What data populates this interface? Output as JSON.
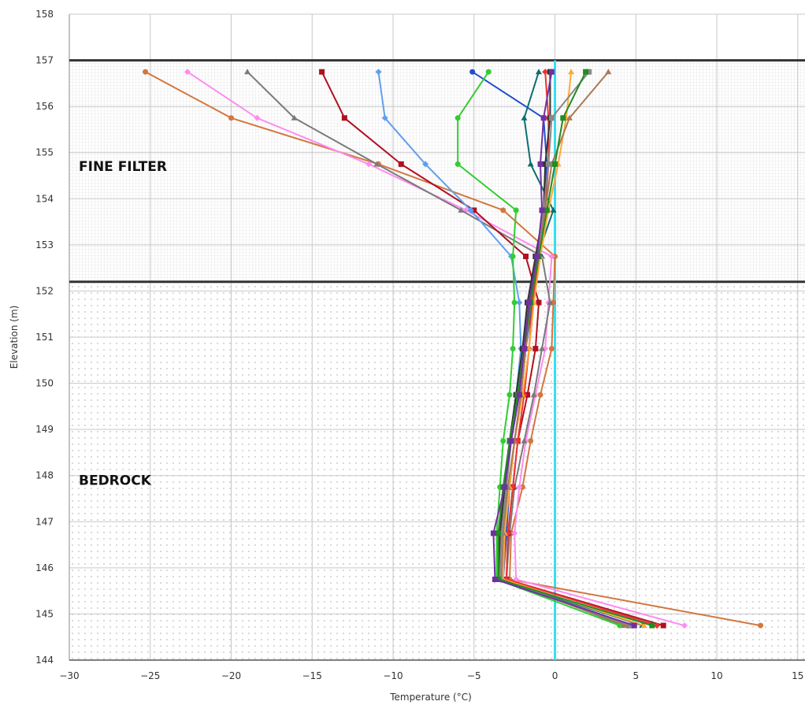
{
  "chart_data": {
    "type": "line",
    "title": "",
    "xlabel": "Temperature (°C)",
    "ylabel": "Elevation (m)",
    "xlim": [
      -30,
      15
    ],
    "ylim": [
      144,
      158
    ],
    "x_ticks": [
      "-30",
      "-25",
      "-20",
      "-15",
      "-10",
      "-5",
      "0",
      "5",
      "10",
      "15"
    ],
    "y_ticks": [
      "144",
      "145",
      "146",
      "147",
      "148",
      "149",
      "150",
      "151",
      "152",
      "153",
      "154",
      "155",
      "156",
      "157",
      "158"
    ],
    "grid": true,
    "zero_line_color": "#33e0f0",
    "zones": [
      {
        "label": "FINE FILTER",
        "from": 152.2,
        "to": 157.0,
        "pattern": "fine-grid"
      },
      {
        "label": "BEDROCK",
        "from": 144.0,
        "to": 152.2,
        "pattern": "dots"
      }
    ],
    "elevations": [
      156.75,
      155.75,
      154.75,
      153.75,
      152.75,
      151.75,
      150.75,
      149.75,
      148.75,
      147.75,
      146.75,
      145.75,
      144.75
    ],
    "series": [
      {
        "color": "#d2773f",
        "marker": "circle",
        "x": [
          -25.3,
          -20.0,
          -10.9,
          -3.2,
          0.0,
          -0.1,
          -0.2,
          -0.9,
          -1.5,
          -2.0,
          -2.7,
          -2.8,
          12.7
        ]
      },
      {
        "color": "#ff8cf0",
        "marker": "diamond",
        "x": [
          -22.7,
          -18.4,
          -11.5,
          -5.5,
          -0.2,
          -0.4,
          -0.6,
          -1.2,
          -1.8,
          -2.2,
          -2.5,
          -2.4,
          8.0
        ]
      },
      {
        "color": "#7a7a7a",
        "marker": "triangle",
        "x": [
          -19.0,
          -16.1,
          -11.0,
          -5.8,
          -0.8,
          -0.3,
          -0.8,
          -1.3,
          -1.9,
          -2.5,
          -2.8,
          -3.0,
          4.2
        ]
      },
      {
        "color": "#b01020",
        "marker": "square",
        "x": [
          -14.4,
          -13.0,
          -9.5,
          -5.0,
          -1.8,
          -1.0,
          -1.2,
          -1.7,
          -2.3,
          -2.6,
          -2.9,
          -3.0,
          6.7
        ]
      },
      {
        "color": "#5f9fef",
        "marker": "diamond",
        "x": [
          -10.9,
          -10.5,
          -8.0,
          -5.2,
          -2.7,
          -2.2,
          -2.1,
          -2.4,
          -2.7,
          -3.0,
          -3.2,
          -3.3,
          4.8
        ]
      },
      {
        "color": "#1f4fcf",
        "marker": "circle",
        "x": [
          -5.1,
          -0.7,
          -0.5,
          -0.7,
          -0.9,
          -1.4,
          -1.8,
          -2.1,
          -2.5,
          -2.8,
          -3.0,
          -3.2,
          4.5
        ]
      },
      {
        "color": "#33cc33",
        "marker": "circle",
        "x": [
          -4.1,
          -6.0,
          -6.0,
          -2.4,
          -2.6,
          -2.5,
          -2.6,
          -2.8,
          -3.2,
          -3.4,
          -3.6,
          -3.6,
          4.0
        ]
      },
      {
        "color": "#0e6e6e",
        "marker": "triangle",
        "x": [
          -1.0,
          -1.9,
          -1.5,
          -0.1,
          -1.1,
          -1.7,
          -2.0,
          -2.4,
          -2.8,
          -3.1,
          -3.4,
          -3.4,
          5.4
        ]
      },
      {
        "color": "#ee3333",
        "marker": "diamond",
        "x": [
          -0.6,
          -0.4,
          -0.4,
          -0.6,
          -1.0,
          -1.4,
          -1.6,
          -1.9,
          -2.3,
          -2.6,
          -2.9,
          -3.0,
          6.3
        ]
      },
      {
        "color": "#333333",
        "marker": "square",
        "x": [
          -0.3,
          -0.3,
          -0.6,
          -0.7,
          -1.2,
          -1.7,
          -2.0,
          -2.4,
          -2.8,
          -3.1,
          -3.4,
          -3.4,
          4.6
        ]
      },
      {
        "color": "#ffaa33",
        "marker": "triangle",
        "x": [
          1.0,
          0.7,
          0.2,
          -0.4,
          -0.9,
          -1.3,
          -1.6,
          -2.0,
          -2.5,
          -2.8,
          -3.1,
          -3.2,
          5.5
        ]
      },
      {
        "color": "#aa7a55",
        "marker": "triangle",
        "x": [
          3.3,
          0.9,
          -0.2,
          -0.6,
          -1.0,
          -1.5,
          -1.8,
          -2.1,
          -2.5,
          -2.9,
          -3.2,
          -3.3,
          4.4
        ]
      },
      {
        "color": "#888888",
        "marker": "square",
        "x": [
          2.1,
          -0.2,
          -0.4,
          -0.7,
          -1.1,
          -1.6,
          -1.9,
          -2.3,
          -2.7,
          -3.0,
          -3.3,
          -3.4,
          4.7
        ]
      },
      {
        "color": "#228b22",
        "marker": "square",
        "x": [
          1.9,
          0.5,
          0.0,
          -0.5,
          -1.0,
          -1.5,
          -1.9,
          -2.3,
          -2.8,
          -3.2,
          -3.5,
          -3.5,
          6.0
        ]
      },
      {
        "color": "#7030a0",
        "marker": "square",
        "x": [
          -0.2,
          -0.7,
          -0.9,
          -0.8,
          -1.1,
          -1.6,
          -1.9,
          -2.2,
          -2.7,
          -3.1,
          -3.8,
          -3.7,
          4.9
        ]
      }
    ]
  }
}
